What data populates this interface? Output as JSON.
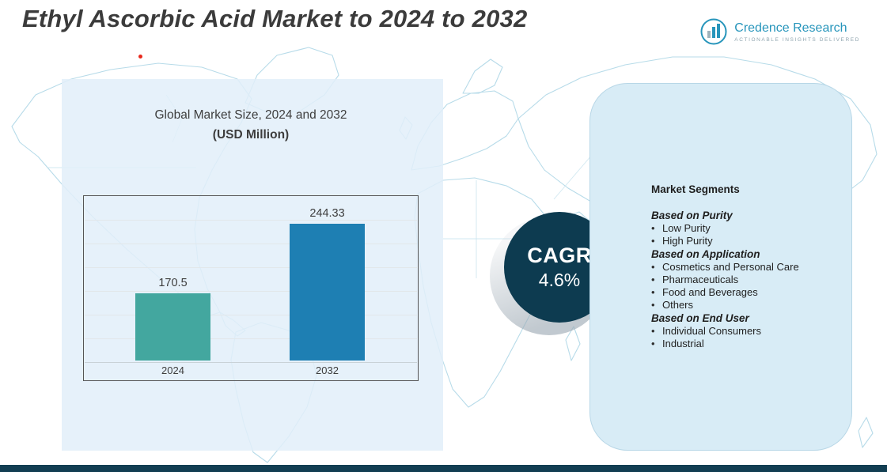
{
  "page": {
    "title": "Ethyl Ascorbic Acid Market to 2024 to 2032"
  },
  "logo": {
    "name": "Credence Research",
    "tagline": "ACTIONABLE INSIGHTS DELIVERED"
  },
  "market_size_panel": {
    "heading_line1": "Global Market Size, 2024 and 2032",
    "heading_line2": "(USD Million)"
  },
  "chart_data": {
    "type": "bar",
    "title": "Global Market Size, 2024 and 2032 (USD Million)",
    "categories": [
      "2024",
      "2032"
    ],
    "values": [
      170.5,
      244.33
    ],
    "value_labels": [
      "170.5",
      "244.33"
    ],
    "colors": [
      "#43a79f",
      "#1e7fb3"
    ],
    "ylim": [
      100,
      275
    ],
    "grid": true,
    "legend": false
  },
  "cagr": {
    "label": "CAGR",
    "value": "4.6%"
  },
  "segments": {
    "title": "Market Segments",
    "groups": [
      {
        "heading": "Based on Purity",
        "items": [
          "Low Purity",
          "High Purity"
        ]
      },
      {
        "heading": "Based on Application",
        "items": [
          "Cosmetics and Personal Care",
          "Pharmaceuticals",
          "Food and Beverages",
          "Others"
        ]
      },
      {
        "heading": "Based on End User",
        "items": [
          "Individual Consumers",
          "Industrial"
        ]
      }
    ]
  },
  "colors": {
    "bar_2024": "#43a79f",
    "bar_2032": "#1e7fb3",
    "cagr_circle": "#0d3b50",
    "bottom_bar": "#123e52",
    "left_panel_bg": "#e4effa",
    "segments_panel_bg": "#d8ecf6",
    "map_line": "#b7dbe9",
    "brand_teal": "#2795bb"
  }
}
